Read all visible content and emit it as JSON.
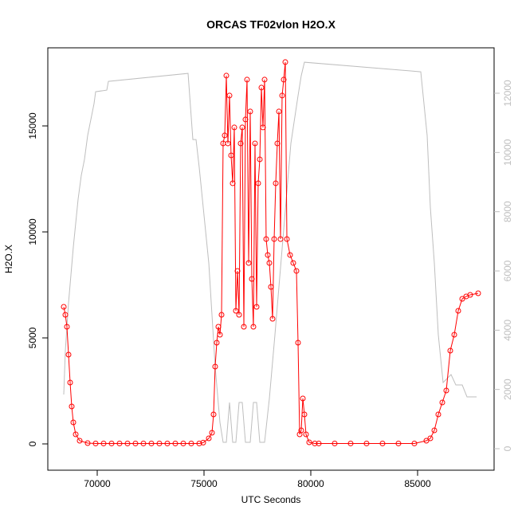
{
  "chart_data": {
    "type": "line",
    "title": "ORCAS TF02vlon H2O.X",
    "x_label": "UTC Seconds",
    "y_label": "H2O.X",
    "xlim": [
      67687,
      88582
    ],
    "ylim": [
      -1241,
      18684
    ],
    "y2lim": [
      -726,
      13533
    ],
    "xticks": [
      70000,
      75000,
      80000,
      85000
    ],
    "yticks": [
      0,
      5000,
      10000,
      15000
    ],
    "y2ticks": [
      0,
      2000,
      4000,
      6000,
      8000,
      10000,
      12000
    ],
    "series": [
      {
        "color": "#ff0000",
        "markers": true,
        "x": [
          68433,
          68508,
          68582,
          68657,
          68732,
          68806,
          68881,
          68993,
          69179,
          69552,
          69926,
          70299,
          70672,
          71045,
          71418,
          71791,
          72164,
          72537,
          72910,
          73283,
          73657,
          74030,
          74403,
          74776,
          74963,
          75224,
          75373,
          75448,
          75522,
          75597,
          75672,
          75746,
          75821,
          75895,
          75970,
          76045,
          76119,
          76194,
          76268,
          76343,
          76418,
          76492,
          76567,
          76642,
          76716,
          76791,
          76866,
          76940,
          77015,
          77090,
          77164,
          77239,
          77313,
          77388,
          77463,
          77537,
          77612,
          77687,
          77761,
          77836,
          77910,
          77985,
          78060,
          78134,
          78209,
          78284,
          78358,
          78433,
          78508,
          78582,
          78657,
          78732,
          78806,
          78881,
          79030,
          79179,
          79328,
          79403,
          79478,
          79552,
          79627,
          79701,
          79776,
          79925,
          80187,
          80373,
          81119,
          81865,
          82611,
          83358,
          84104,
          84850,
          85410,
          85597,
          85784,
          85970,
          86157,
          86343,
          86530,
          86717,
          86903,
          87090,
          87276,
          87463,
          87836
        ],
        "values": [
          6467,
          6091,
          5527,
          4211,
          2895,
          1767,
          1015,
          451,
          150,
          38,
          20,
          20,
          20,
          20,
          20,
          20,
          20,
          20,
          20,
          20,
          20,
          20,
          20,
          20,
          60,
          263,
          526,
          1391,
          3647,
          4775,
          5527,
          5151,
          6091,
          14175,
          14551,
          17371,
          14175,
          16431,
          13611,
          12295,
          14927,
          6279,
          8159,
          6091,
          14175,
          14927,
          5527,
          15303,
          17183,
          8535,
          15679,
          7783,
          5527,
          14175,
          6467,
          12295,
          13423,
          16807,
          14927,
          17183,
          9663,
          8911,
          8535,
          7407,
          5903,
          9663,
          12295,
          14175,
          15679,
          9663,
          16431,
          17183,
          18010,
          9663,
          8911,
          8535,
          8159,
          4775,
          451,
          639,
          2143,
          1391,
          451,
          75,
          20,
          20,
          20,
          20,
          20,
          20,
          20,
          20,
          150,
          263,
          639,
          1391,
          1955,
          2519,
          4399,
          5151,
          6279,
          6843,
          6956,
          7031,
          7106
        ]
      },
      {
        "color": "#bebebe",
        "axis": "y2",
        "markers": false,
        "x": [
          68433,
          68508,
          68657,
          68881,
          69105,
          69254,
          69403,
          69552,
          69851,
          69926,
          70448,
          70523,
          74254,
          74478,
          74627,
          74776,
          75224,
          75522,
          75746,
          75895,
          76045,
          76194,
          76343,
          76492,
          76642,
          76791,
          76940,
          77164,
          77313,
          77463,
          77612,
          77836,
          78060,
          78321,
          78694,
          79067,
          79403,
          79552,
          79701,
          85149,
          85448,
          85597,
          85784,
          85970,
          86194,
          86567,
          86791,
          87090,
          87314,
          87762
        ],
        "values": [
          1829,
          3309,
          4923,
          6806,
          8420,
          9227,
          9765,
          10572,
          11648,
          12051,
          12105,
          12401,
          12670,
          10437,
          10437,
          9496,
          6268,
          2771,
          888,
          215,
          215,
          1560,
          215,
          215,
          1560,
          1560,
          215,
          215,
          1560,
          1560,
          215,
          215,
          1695,
          3847,
          7075,
          10303,
          11917,
          12589,
          13047,
          12724,
          10572,
          8151,
          6268,
          3847,
          2233,
          2502,
          2152,
          2152,
          1749,
          1749
        ]
      }
    ]
  }
}
